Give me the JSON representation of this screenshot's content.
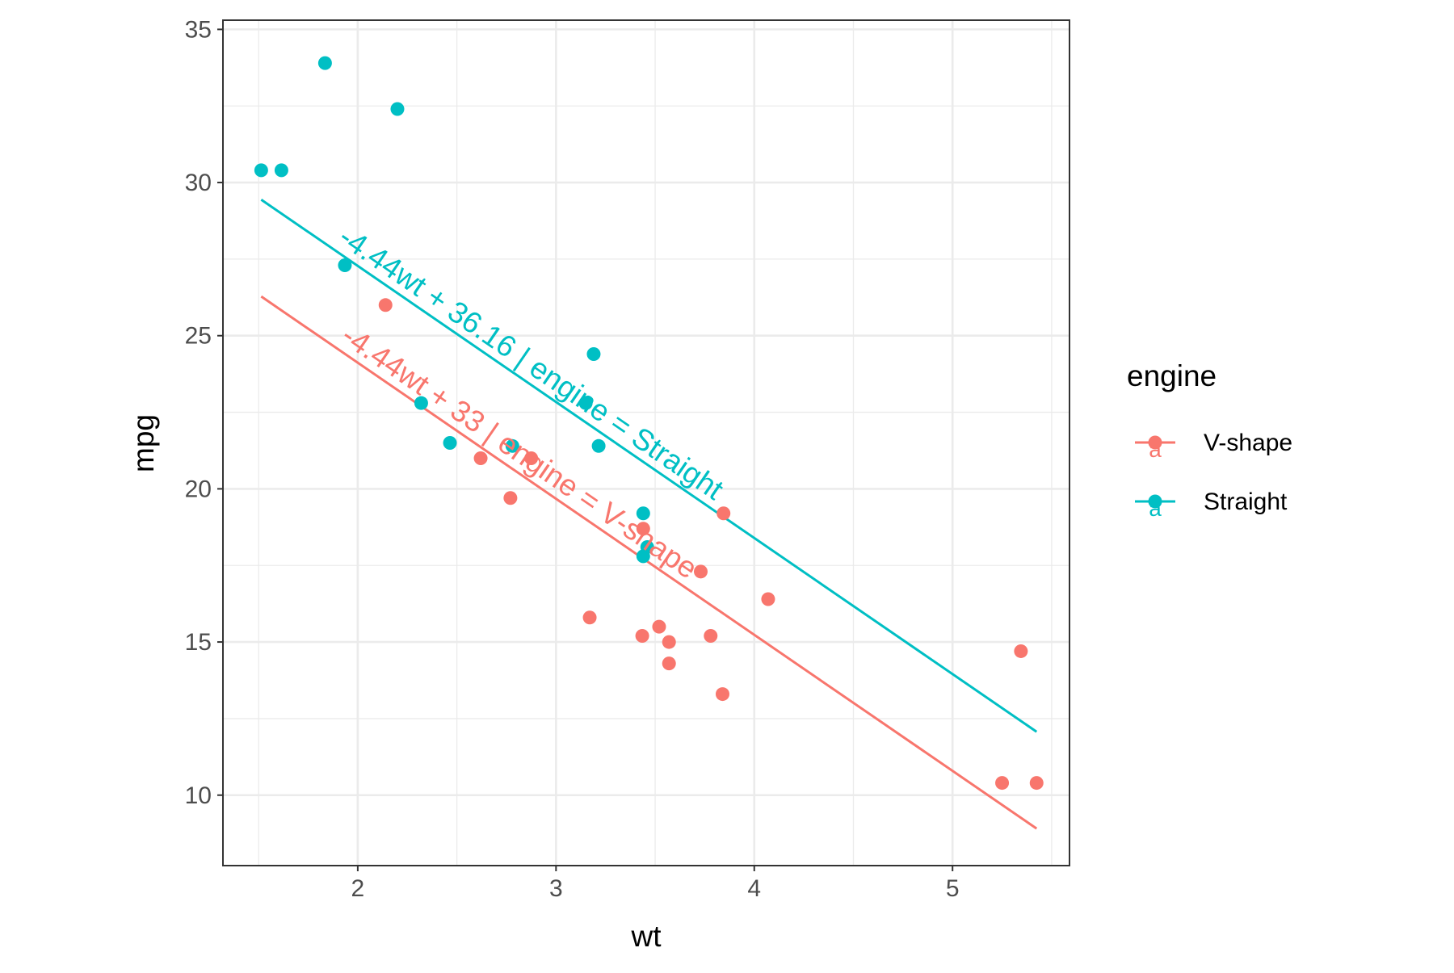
{
  "chart_data": {
    "type": "scatter",
    "xlabel": "wt",
    "ylabel": "mpg",
    "xlim": [
      1.32,
      5.59
    ],
    "ylim": [
      7.7,
      35.3
    ],
    "x_ticks": [
      2,
      3,
      4,
      5
    ],
    "y_ticks": [
      10,
      15,
      20,
      25,
      30,
      35
    ],
    "grid": true,
    "legend": {
      "title": "engine",
      "position": "right",
      "entries": [
        "V-shape",
        "Straight"
      ]
    },
    "colors": {
      "V-shape": "#F8766D",
      "Straight": "#00BFC4"
    },
    "series": [
      {
        "name": "V-shape",
        "color": "#F8766D",
        "points": [
          {
            "x": 2.14,
            "y": 26.0
          },
          {
            "x": 2.62,
            "y": 21.0
          },
          {
            "x": 2.77,
            "y": 19.7
          },
          {
            "x": 2.875,
            "y": 21.0
          },
          {
            "x": 3.17,
            "y": 15.8
          },
          {
            "x": 3.435,
            "y": 15.2
          },
          {
            "x": 3.44,
            "y": 18.7
          },
          {
            "x": 3.52,
            "y": 15.5
          },
          {
            "x": 3.57,
            "y": 15.0
          },
          {
            "x": 3.57,
            "y": 14.3
          },
          {
            "x": 3.73,
            "y": 17.3
          },
          {
            "x": 3.78,
            "y": 15.2
          },
          {
            "x": 3.84,
            "y": 13.3
          },
          {
            "x": 3.845,
            "y": 19.2
          },
          {
            "x": 4.07,
            "y": 16.4
          },
          {
            "x": 5.25,
            "y": 10.4
          },
          {
            "x": 5.345,
            "y": 14.7
          },
          {
            "x": 5.424,
            "y": 10.4
          }
        ],
        "fit": {
          "x1": 1.513,
          "y1": 26.28,
          "x2": 5.424,
          "y2": 8.91
        },
        "fit_label": "-4.44wt + 33 | engine = V-shape"
      },
      {
        "name": "Straight",
        "color": "#00BFC4",
        "points": [
          {
            "x": 1.513,
            "y": 30.4
          },
          {
            "x": 1.615,
            "y": 30.4
          },
          {
            "x": 1.835,
            "y": 33.9
          },
          {
            "x": 1.935,
            "y": 27.3
          },
          {
            "x": 2.2,
            "y": 32.4
          },
          {
            "x": 2.32,
            "y": 22.8
          },
          {
            "x": 2.465,
            "y": 21.5
          },
          {
            "x": 2.78,
            "y": 21.4
          },
          {
            "x": 3.15,
            "y": 22.8
          },
          {
            "x": 3.19,
            "y": 24.4
          },
          {
            "x": 3.215,
            "y": 21.4
          },
          {
            "x": 3.44,
            "y": 19.2
          },
          {
            "x": 3.44,
            "y": 17.8
          },
          {
            "x": 3.46,
            "y": 18.1
          }
        ],
        "fit": {
          "x1": 1.513,
          "y1": 29.44,
          "x2": 5.424,
          "y2": 12.07
        },
        "fit_label": "-4.44wt + 36.16 | engine = Straight"
      }
    ]
  }
}
